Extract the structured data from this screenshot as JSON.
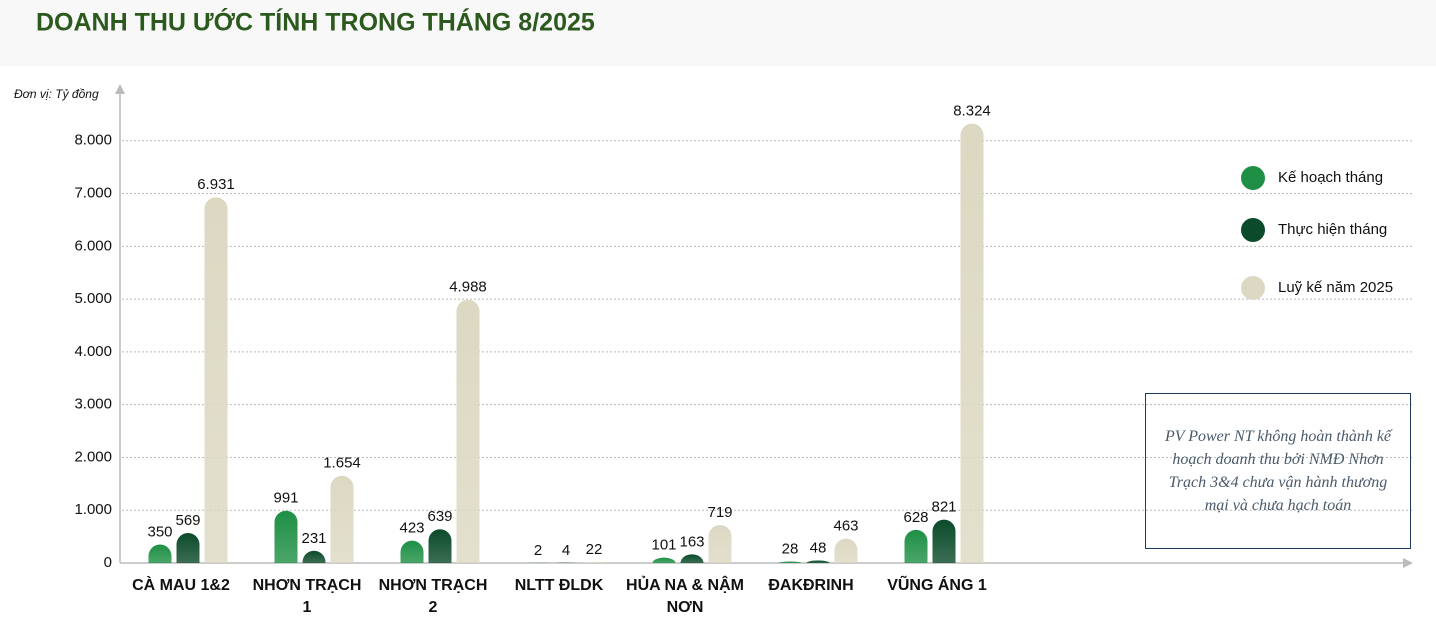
{
  "chart_data": {
    "type": "bar",
    "title": "DOANH THU ƯỚC TÍNH TRONG THÁNG 8/2025",
    "y_label": "Đơn vị: Tỷ đồng",
    "categories": [
      "CÀ MAU 1&2",
      "NHƠN TRẠCH 1",
      "NHƠN TRẠCH 2",
      "NLTT ĐLDK",
      "HỦA NA & NẬM NƠN",
      "ĐAKĐRINH",
      "VŨNG ÁNG 1"
    ],
    "series": [
      {
        "name": "Kế hoạch tháng",
        "color": "#1e8f45",
        "values": [
          350,
          991,
          423,
          2,
          101,
          28,
          628
        ]
      },
      {
        "name": "Thực hiện tháng",
        "color": "#0b4a2a",
        "values": [
          569,
          231,
          639,
          4,
          163,
          48,
          821
        ]
      },
      {
        "name": "Luỹ kế năm 2025",
        "color": "#dcd8c2",
        "values": [
          6931,
          1654,
          4988,
          22,
          719,
          463,
          8324
        ],
        "value_labels": [
          "6.931",
          "1.654",
          "4.988",
          "22",
          "719",
          "463",
          "8.324"
        ]
      }
    ],
    "ylim": [
      0,
      9000
    ],
    "yticks": [
      0,
      {
        "value": 1000,
        "label": "1.000"
      },
      {
        "value": 2000,
        "label": "2.000"
      },
      {
        "value": 3000,
        "label": "3.000"
      },
      {
        "value": 4000,
        "label": "4.000"
      },
      {
        "value": 5000,
        "label": "5.000"
      },
      {
        "value": 6000,
        "label": "6.000"
      },
      {
        "value": 7000,
        "label": "7.000"
      },
      {
        "value": 8000,
        "label": "8.000"
      }
    ],
    "grid": true,
    "legend": "right",
    "annotation": "PV Power NT không hoàn thành kế hoạch doanh thu bởi NMĐ Nhơn Trạch 3&4 chưa vận hành thương mại và chưa hạch toán"
  }
}
